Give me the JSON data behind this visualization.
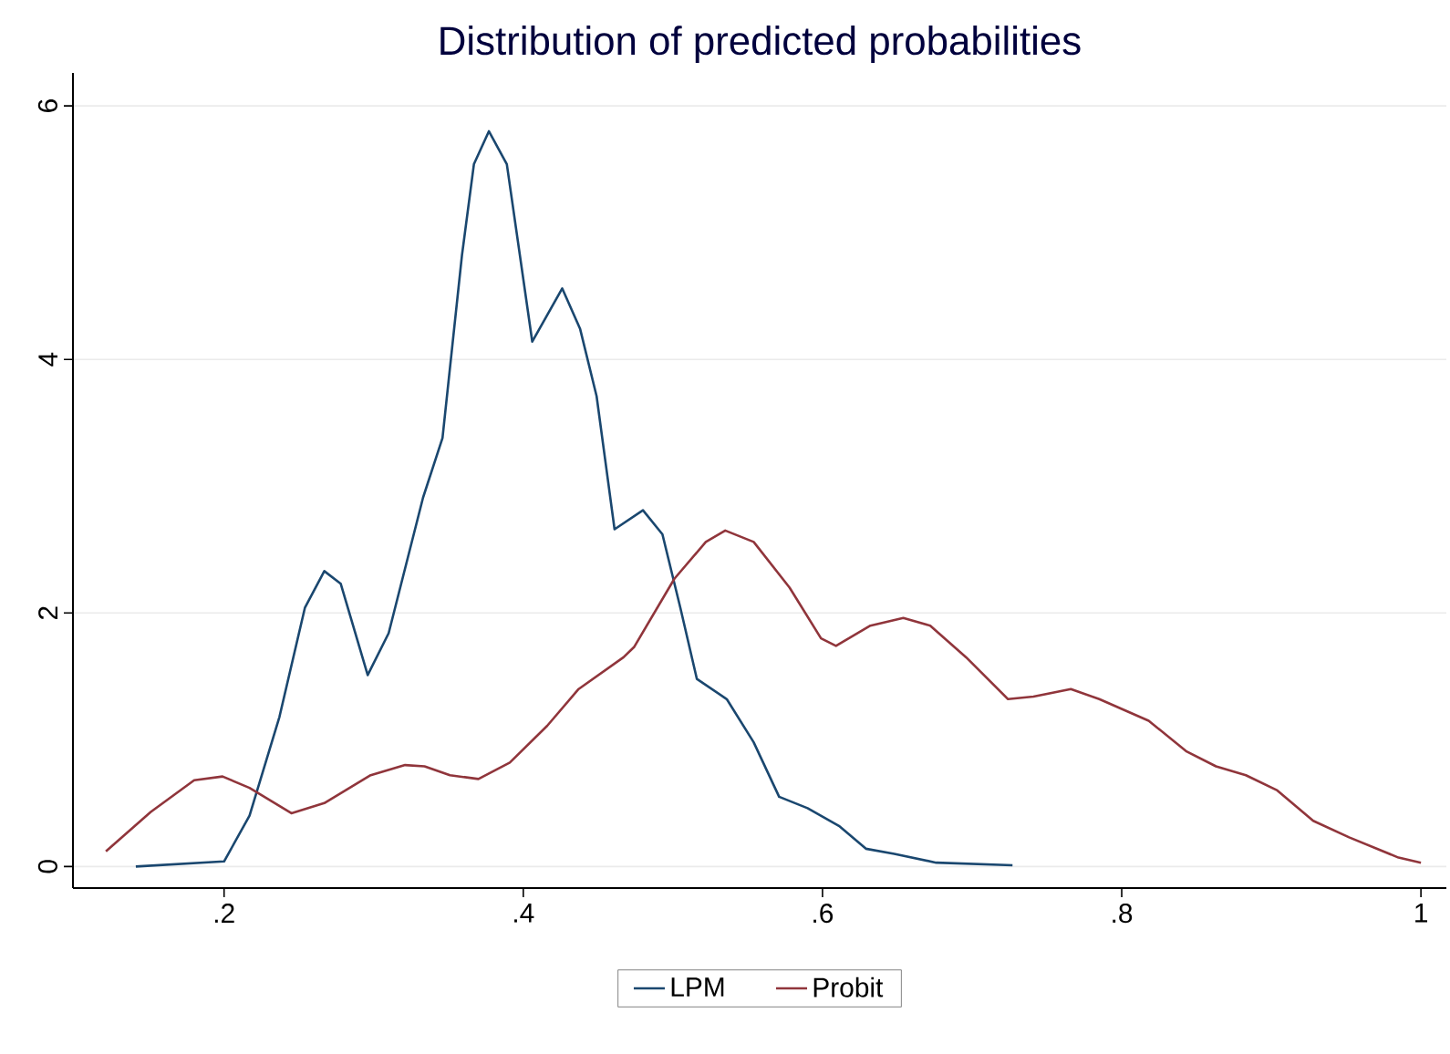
{
  "chart_data": {
    "type": "line",
    "title": "Distribution of predicted probabilities",
    "xlim": [
      0.099,
      1.017
    ],
    "ylim": [
      -0.17,
      6.26
    ],
    "xticks": [
      {
        "value": 0.2,
        "label": ".2"
      },
      {
        "value": 0.4,
        "label": ".4"
      },
      {
        "value": 0.6,
        "label": ".6"
      },
      {
        "value": 0.8,
        "label": ".8"
      },
      1
    ],
    "yticks": [
      0,
      2,
      4,
      6
    ],
    "grid": "y",
    "legend": "bottom",
    "line_style": "solid",
    "marker": "none",
    "series": [
      {
        "name": "LPM",
        "color": "#1a476f",
        "x": [
          0.141,
          0.2,
          0.217,
          0.237,
          0.254,
          0.267,
          0.278,
          0.296,
          0.31,
          0.333,
          0.346,
          0.359,
          0.367,
          0.377,
          0.389,
          0.406,
          0.426,
          0.438,
          0.449,
          0.461,
          0.48,
          0.493,
          0.505,
          0.516,
          0.536,
          0.554,
          0.571,
          0.59,
          0.611,
          0.629,
          0.648,
          0.676,
          0.727
        ],
        "values": [
          0,
          0.04,
          0.4,
          1.18,
          2.04,
          2.33,
          2.23,
          1.51,
          1.84,
          2.91,
          3.38,
          4.82,
          5.54,
          5.8,
          5.54,
          4.14,
          4.56,
          4.24,
          3.71,
          2.66,
          2.81,
          2.62,
          2.04,
          1.48,
          1.32,
          0.98,
          0.55,
          0.46,
          0.32,
          0.14,
          0.1,
          0.03,
          0.01
        ]
      },
      {
        "name": "Probit",
        "color": "#90353b",
        "x": [
          0.121,
          0.151,
          0.18,
          0.199,
          0.217,
          0.245,
          0.267,
          0.298,
          0.321,
          0.334,
          0.351,
          0.37,
          0.391,
          0.416,
          0.437,
          0.467,
          0.474,
          0.501,
          0.522,
          0.535,
          0.554,
          0.578,
          0.599,
          0.609,
          0.632,
          0.654,
          0.672,
          0.696,
          0.724,
          0.741,
          0.766,
          0.785,
          0.818,
          0.843,
          0.863,
          0.883,
          0.904,
          0.928,
          0.952,
          0.985,
          1.0
        ],
        "values": [
          0.12,
          0.43,
          0.68,
          0.71,
          0.62,
          0.42,
          0.5,
          0.72,
          0.8,
          0.79,
          0.72,
          0.69,
          0.82,
          1.11,
          1.4,
          1.65,
          1.73,
          2.27,
          2.56,
          2.65,
          2.56,
          2.2,
          1.8,
          1.74,
          1.9,
          1.96,
          1.9,
          1.65,
          1.32,
          1.34,
          1.4,
          1.32,
          1.15,
          0.91,
          0.79,
          0.72,
          0.6,
          0.36,
          0.23,
          0.07,
          0.03
        ]
      }
    ]
  }
}
